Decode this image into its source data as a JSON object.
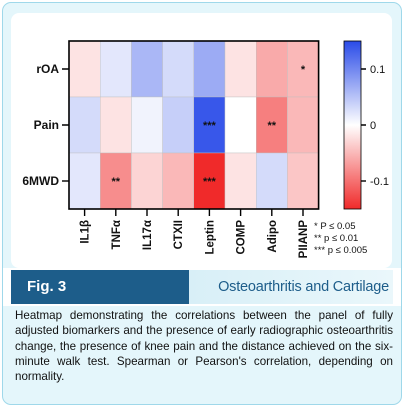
{
  "chart_data": {
    "type": "heatmap",
    "rows": [
      "rOA",
      "Pain",
      "6MWD"
    ],
    "columns": [
      "IL1β",
      "TNFα",
      "IL17α",
      "CTXII",
      "Leptin",
      "COMP",
      "Adipo",
      "PIIANP"
    ],
    "values": [
      [
        -0.02,
        0.02,
        0.06,
        0.03,
        0.07,
        -0.02,
        -0.06,
        -0.05
      ],
      [
        0.03,
        -0.02,
        0.01,
        0.04,
        0.14,
        0.0,
        -0.09,
        -0.05
      ],
      [
        0.02,
        -0.08,
        -0.03,
        -0.05,
        -0.17,
        -0.02,
        0.03,
        -0.04
      ]
    ],
    "significance": [
      [
        "",
        "",
        "",
        "",
        "",
        "",
        "",
        "*"
      ],
      [
        "",
        "",
        "",
        "",
        "***",
        "",
        "**",
        ""
      ],
      [
        "",
        "**",
        "",
        "",
        "***",
        "",
        "",
        ""
      ]
    ],
    "colorbar": {
      "min": -0.15,
      "max": 0.15,
      "ticks": [
        "0.1",
        "0",
        "-0.1"
      ],
      "tick_values": [
        0.1,
        0,
        -0.1
      ],
      "high_color": "#2a4be8",
      "mid_color": "#ffffff",
      "low_color": "#f02a2a"
    },
    "legend": [
      "* P ≤ 0.05",
      "** p ≤ 0.01",
      "*** p ≤ 0.005"
    ]
  },
  "figure": {
    "label": "Fig. 3",
    "journal": "Osteoarthritis and Cartilage"
  },
  "caption": "Heatmap demonstrating the correlations between the panel of fully adjusted biomarkers and the presence of early radiographic osteoarthritis change, the presence of knee pain and the distance achieved on the six-minute walk test. Spearman or Pearson's correlation, depending on normality.",
  "colors": {
    "brand": "#1d5d8a",
    "card_bg": "#e4f6fb",
    "card_border": "#9fd8ea"
  }
}
